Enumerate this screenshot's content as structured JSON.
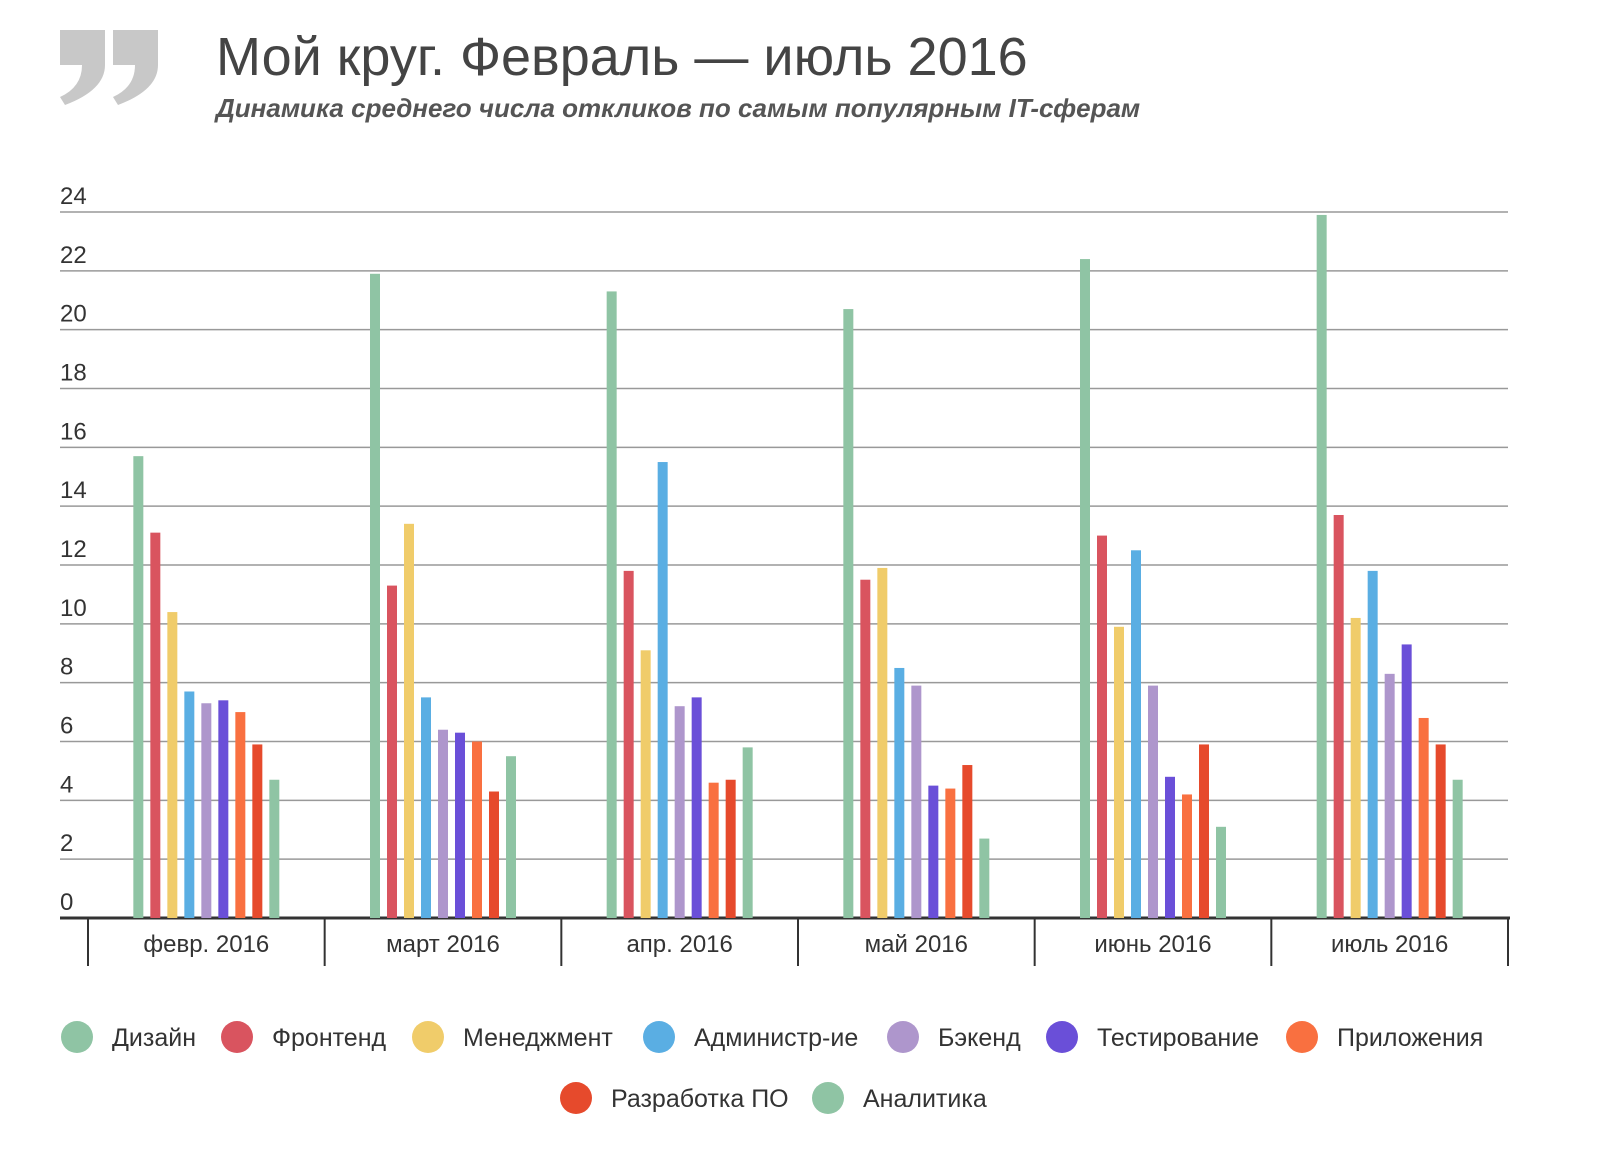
{
  "chart_data": {
    "type": "bar",
    "title": "Мой круг. Февраль — июль 2016",
    "subtitle": "Динамика среднего числа откликов по самым популярным IT-сферам",
    "categories": [
      "февр. 2016",
      "март 2016",
      "апр. 2016",
      "май 2016",
      "июнь 2016",
      "июль 2016"
    ],
    "series": [
      {
        "name": "Дизайн",
        "color": "#8fc4a4",
        "values": [
          15.7,
          21.9,
          21.3,
          20.7,
          22.4,
          23.9
        ]
      },
      {
        "name": "Фронтенд",
        "color": "#d9545f",
        "values": [
          13.1,
          11.3,
          11.8,
          11.5,
          13.0,
          13.7
        ]
      },
      {
        "name": "Менеджмент",
        "color": "#f0cc6a",
        "values": [
          10.4,
          13.4,
          9.1,
          11.9,
          9.9,
          10.2
        ]
      },
      {
        "name": "Администр-ие",
        "color": "#5aaee3",
        "values": [
          7.7,
          7.5,
          15.5,
          8.5,
          12.5,
          11.8
        ]
      },
      {
        "name": "Бэкенд",
        "color": "#ae96cc",
        "values": [
          7.3,
          6.4,
          7.2,
          7.9,
          7.9,
          8.3
        ]
      },
      {
        "name": "Тестирование",
        "color": "#6a4fd8",
        "values": [
          7.4,
          6.3,
          7.5,
          4.5,
          4.8,
          9.3
        ]
      },
      {
        "name": "Приложения",
        "color": "#f97040",
        "values": [
          7.0,
          6.0,
          4.6,
          4.4,
          4.2,
          6.8
        ]
      },
      {
        "name": "Разработка ПО",
        "color": "#e64a2c",
        "values": [
          5.9,
          4.3,
          4.7,
          5.2,
          5.9,
          5.9
        ]
      },
      {
        "name": "Аналитика",
        "color": "#8fc4a4",
        "values": [
          4.7,
          5.5,
          5.8,
          2.7,
          3.1,
          4.7
        ]
      }
    ],
    "ylim": [
      0,
      24
    ],
    "yticks": [
      0,
      2,
      4,
      6,
      8,
      10,
      12,
      14,
      16,
      18,
      20,
      22,
      24
    ],
    "grid": true
  }
}
